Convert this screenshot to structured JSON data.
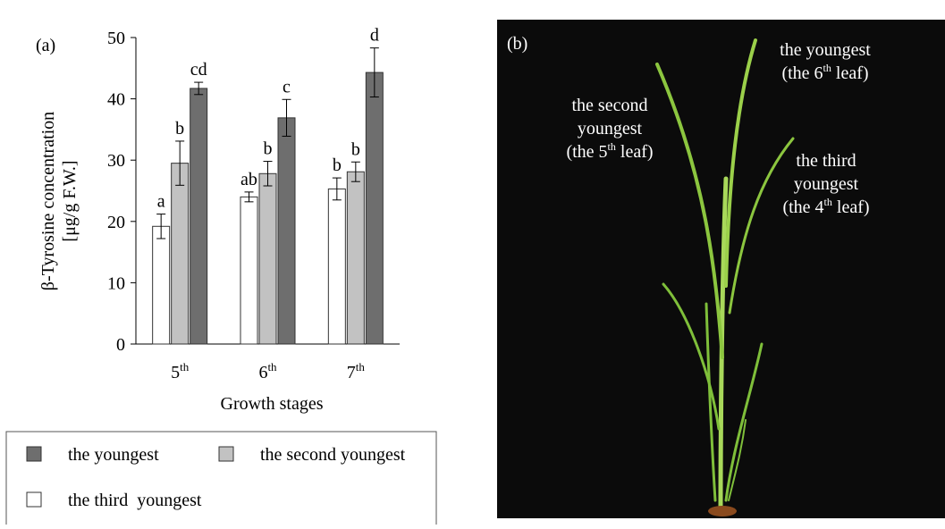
{
  "chart_data": {
    "type": "bar",
    "panel_label": "(a)",
    "y_label_lines": [
      "β-Tyrosine concentration",
      "[μg/g F.W.]"
    ],
    "x_label": "Growth stages",
    "categories": [
      "5",
      "6",
      "7"
    ],
    "category_suffix": "th",
    "ylim": [
      0,
      50
    ],
    "yticks": [
      0,
      10,
      20,
      30,
      40,
      50
    ],
    "series": [
      {
        "name": "the youngest",
        "color": "#6e6e6e",
        "values": [
          41.7,
          36.9,
          44.3
        ],
        "errors": [
          1.0,
          3.0,
          4.0
        ],
        "letters": [
          "cd",
          "c",
          "d"
        ]
      },
      {
        "name": "the second youngest",
        "color": "#c2c2c2",
        "values": [
          29.5,
          27.8,
          28.1
        ],
        "errors": [
          3.6,
          2.0,
          1.6
        ],
        "letters": [
          "b",
          "b",
          "b"
        ]
      },
      {
        "name": "the third  youngest",
        "color": "#ffffff",
        "values": [
          19.2,
          24.0,
          25.3
        ],
        "errors": [
          2.0,
          0.8,
          1.8
        ],
        "letters": [
          "a",
          "ab",
          "b"
        ]
      }
    ]
  },
  "photo": {
    "label": "(b)",
    "annotations": [
      {
        "lines": [
          [
            "the youngest"
          ],
          [
            "(the 6",
            "th",
            " leaf)"
          ]
        ]
      },
      {
        "lines": [
          [
            "the second"
          ],
          [
            "youngest"
          ],
          [
            "(the 5",
            "th",
            " leaf)"
          ]
        ]
      },
      {
        "lines": [
          [
            "the third"
          ],
          [
            "youngest"
          ],
          [
            "(the 4",
            "th",
            " leaf)"
          ]
        ]
      }
    ]
  }
}
